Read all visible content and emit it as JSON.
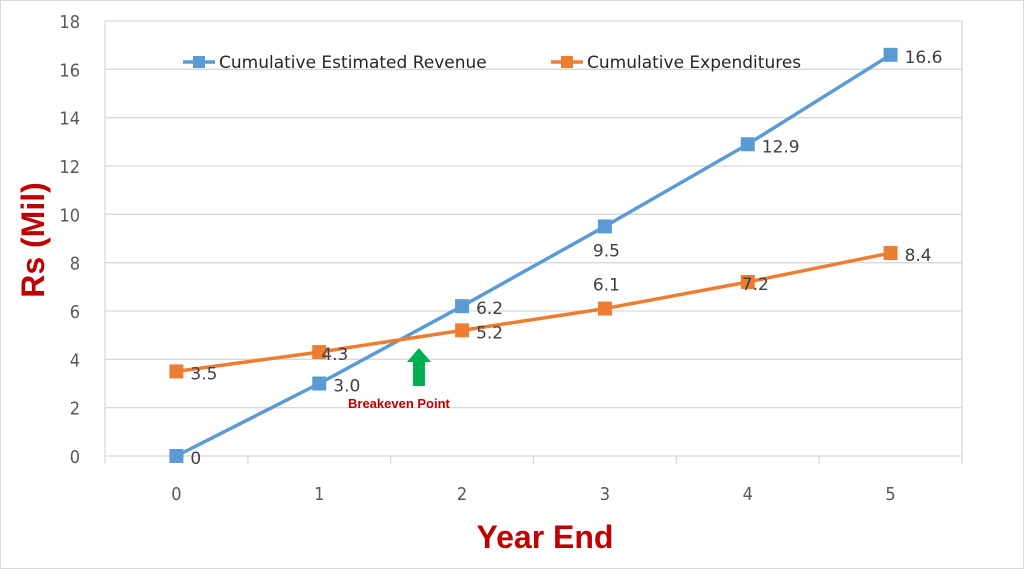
{
  "chart_data": {
    "type": "line",
    "title": "",
    "xlabel": "Year End",
    "ylabel": "Rs (Mil)",
    "categories": [
      "0",
      "1",
      "2",
      "3",
      "4",
      "5"
    ],
    "ylim": [
      0,
      18
    ],
    "yticks": [
      "0",
      "2",
      "4",
      "6",
      "8",
      "10",
      "12",
      "14",
      "16",
      "18"
    ],
    "grid": true,
    "legend_position": "top",
    "series": [
      {
        "name": "Cumulative Estimated Revenue",
        "color": "#5b9bd5",
        "values": [
          0,
          3.0,
          6.2,
          9.5,
          12.9,
          16.6
        ],
        "labels": [
          "0",
          "3.0",
          "6.2",
          "9.5",
          "12.9",
          "16.6"
        ]
      },
      {
        "name": "Cumulative Expenditures",
        "color": "#ed7d31",
        "values": [
          3.5,
          4.3,
          5.2,
          6.1,
          7.2,
          8.4
        ],
        "labels": [
          "3.5",
          "4.3",
          "5.2",
          "6.1",
          "7.2",
          "8.4"
        ]
      }
    ],
    "annotations": [
      {
        "text": "Breakeven Point",
        "color": "#c00000",
        "arrow_color": "#00b050",
        "x": 1.6,
        "y": 4.8
      }
    ]
  }
}
